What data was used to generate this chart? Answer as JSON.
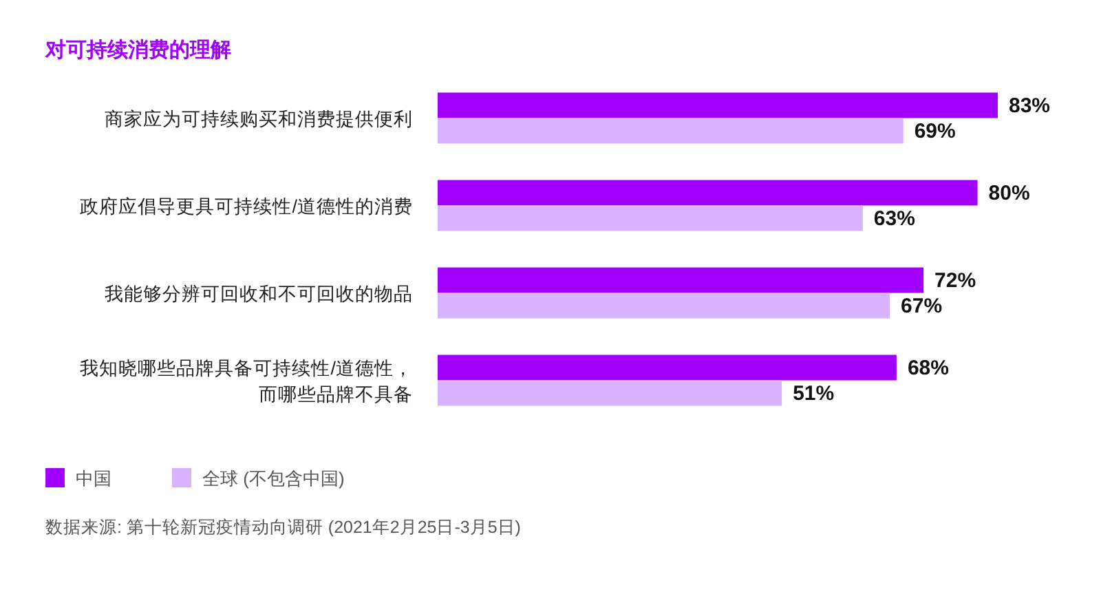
{
  "chart_data": {
    "type": "bar",
    "orientation": "horizontal",
    "title": "对可持续消费的理解",
    "categories": [
      "商家应为可持续购买和消费提供便利",
      "政府应倡导更具可持续性/道德性的消费",
      "我能够分辨可回收和不可回收的物品",
      "我知晓哪些品牌具备可持续性/道德性，而哪些品牌不具备"
    ],
    "series": [
      {
        "name": "中国",
        "color": "#a100ff",
        "values": [
          83,
          80,
          72,
          68
        ],
        "value_labels": [
          "83%",
          "80%",
          "72%",
          "68%"
        ]
      },
      {
        "name": "全球 (不包含中国)",
        "color": "#d9b3ff",
        "values": [
          69,
          63,
          67,
          51
        ],
        "value_labels": [
          "69%",
          "63%",
          "67%",
          "51%"
        ]
      }
    ],
    "legend": "bottom",
    "annotations": [
      "数据来源: 第十轮新冠疫情动向调研 (2021年2月25日-3月5日)"
    ]
  }
}
